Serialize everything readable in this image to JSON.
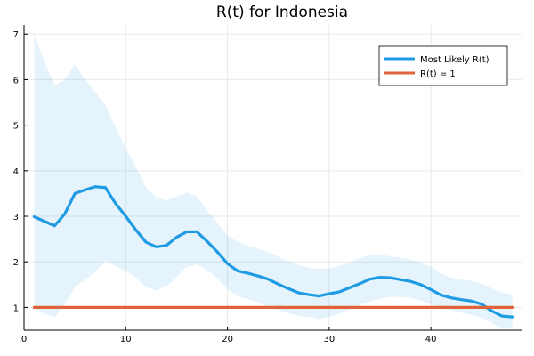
{
  "chart_data": {
    "type": "line",
    "title": "R(t) for Indonesia",
    "xlabel": "",
    "ylabel": "",
    "xlim": [
      0,
      49
    ],
    "ylim": [
      0.5,
      7.2
    ],
    "xticks": [
      0,
      10,
      20,
      30,
      40
    ],
    "yticks": [
      1,
      2,
      3,
      4,
      5,
      6,
      7
    ],
    "grid": true,
    "legend_position": "top-right",
    "x": [
      1,
      2,
      3,
      4,
      5,
      6,
      7,
      8,
      9,
      10,
      11,
      12,
      13,
      14,
      15,
      16,
      17,
      18,
      19,
      20,
      21,
      22,
      23,
      24,
      25,
      26,
      27,
      28,
      29,
      30,
      31,
      32,
      33,
      34,
      35,
      36,
      37,
      38,
      39,
      40,
      41,
      42,
      43,
      44,
      45,
      46,
      47,
      48
    ],
    "series": [
      {
        "name": "Most Likely R(t)",
        "color": "#1f9be4",
        "values": [
          2.99,
          2.89,
          2.79,
          3.05,
          3.5,
          3.58,
          3.65,
          3.63,
          3.28,
          3.0,
          2.7,
          2.43,
          2.33,
          2.36,
          2.54,
          2.66,
          2.66,
          2.45,
          2.22,
          1.96,
          1.8,
          1.75,
          1.69,
          1.62,
          1.51,
          1.41,
          1.32,
          1.28,
          1.25,
          1.3,
          1.34,
          1.43,
          1.52,
          1.62,
          1.66,
          1.65,
          1.61,
          1.57,
          1.5,
          1.39,
          1.27,
          1.21,
          1.17,
          1.14,
          1.07,
          0.92,
          0.81,
          0.79
        ],
        "band_upper": [
          7.0,
          6.4,
          5.87,
          6.0,
          6.33,
          6.0,
          5.72,
          5.44,
          4.96,
          4.49,
          4.09,
          3.63,
          3.42,
          3.35,
          3.43,
          3.52,
          3.43,
          3.13,
          2.86,
          2.58,
          2.44,
          2.35,
          2.29,
          2.21,
          2.11,
          2.01,
          1.93,
          1.87,
          1.84,
          1.86,
          1.91,
          1.98,
          2.08,
          2.16,
          2.16,
          2.12,
          2.09,
          2.05,
          1.98,
          1.89,
          1.74,
          1.65,
          1.61,
          1.58,
          1.52,
          1.42,
          1.32,
          1.28
        ],
        "band_lower": [
          0.98,
          0.86,
          0.79,
          1.07,
          1.45,
          1.6,
          1.78,
          2.02,
          1.91,
          1.8,
          1.66,
          1.44,
          1.37,
          1.47,
          1.66,
          1.89,
          1.94,
          1.82,
          1.64,
          1.41,
          1.24,
          1.18,
          1.11,
          1.02,
          0.95,
          0.87,
          0.82,
          0.79,
          0.75,
          0.79,
          0.86,
          0.96,
          1.06,
          1.13,
          1.19,
          1.23,
          1.23,
          1.21,
          1.15,
          1.07,
          0.98,
          0.94,
          0.88,
          0.84,
          0.78,
          0.65,
          0.55,
          0.53
        ]
      },
      {
        "name": "R(t) = 1",
        "color": "#e0633b",
        "values": [
          1,
          1,
          1,
          1,
          1,
          1,
          1,
          1,
          1,
          1,
          1,
          1,
          1,
          1,
          1,
          1,
          1,
          1,
          1,
          1,
          1,
          1,
          1,
          1,
          1,
          1,
          1,
          1,
          1,
          1,
          1,
          1,
          1,
          1,
          1,
          1,
          1,
          1,
          1,
          1,
          1,
          1,
          1,
          1,
          1,
          1,
          1,
          1
        ]
      }
    ],
    "band_color": "#1f9be4"
  }
}
